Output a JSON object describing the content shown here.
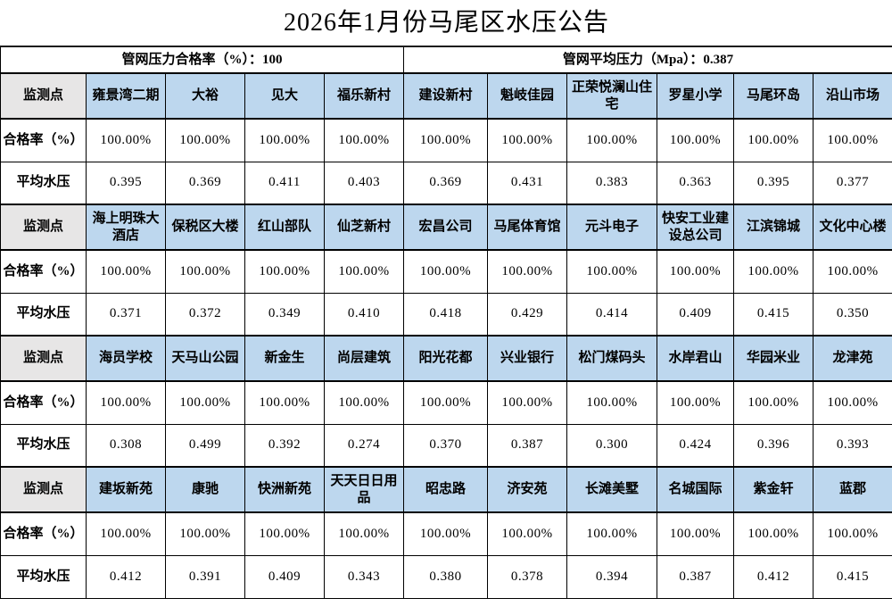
{
  "title": "2026年1月份马尾区水压公告",
  "summary": {
    "pass_rate": "管网压力合格率（%）：100",
    "avg_pressure": "管网平均压力（Mpa）：0.387"
  },
  "row_labels": {
    "point": "监测点",
    "rate": "合格率（%）",
    "pressure": "平均水压"
  },
  "groups": [
    {
      "points": [
        "雍景湾二期",
        "大裕",
        "见大",
        "福乐新村",
        "建设新村",
        "魁岐佳园",
        "正荣悦澜山住宅",
        "罗星小学",
        "马尾环岛",
        "沿山市场"
      ],
      "rates": [
        "100.00%",
        "100.00%",
        "100.00%",
        "100.00%",
        "100.00%",
        "100.00%",
        "100.00%",
        "100.00%",
        "100.00%",
        "100.00%"
      ],
      "pressures": [
        "0.395",
        "0.369",
        "0.411",
        "0.403",
        "0.369",
        "0.431",
        "0.383",
        "0.363",
        "0.395",
        "0.377"
      ]
    },
    {
      "points": [
        "海上明珠大酒店",
        "保税区大楼",
        "红山部队",
        "仙芝新村",
        "宏昌公司",
        "马尾体育馆",
        "元斗电子",
        "快安工业建设总公司",
        "江滨锦城",
        "文化中心楼"
      ],
      "rates": [
        "100.00%",
        "100.00%",
        "100.00%",
        "100.00%",
        "100.00%",
        "100.00%",
        "100.00%",
        "100.00%",
        "100.00%",
        "100.00%"
      ],
      "pressures": [
        "0.371",
        "0.372",
        "0.349",
        "0.410",
        "0.418",
        "0.429",
        "0.414",
        "0.409",
        "0.415",
        "0.350"
      ]
    },
    {
      "points": [
        "海员学校",
        "天马山公园",
        "新金生",
        "尚层建筑",
        "阳光花都",
        "兴业银行",
        "松门煤码头",
        "水岸君山",
        "华园米业",
        "龙津苑"
      ],
      "rates": [
        "100.00%",
        "100.00%",
        "100.00%",
        "100.00%",
        "100.00%",
        "100.00%",
        "100.00%",
        "100.00%",
        "100.00%",
        "100.00%"
      ],
      "pressures": [
        "0.308",
        "0.499",
        "0.392",
        "0.274",
        "0.370",
        "0.387",
        "0.300",
        "0.424",
        "0.396",
        "0.393"
      ]
    },
    {
      "points": [
        "建坂新苑",
        "康驰",
        "快洲新苑",
        "天天日日用品",
        "昭忠路",
        "济安苑",
        "长滩美墅",
        "名城国际",
        "紫金轩",
        "蓝郡"
      ],
      "rates": [
        "100.00%",
        "100.00%",
        "100.00%",
        "100.00%",
        "100.00%",
        "100.00%",
        "100.00%",
        "100.00%",
        "100.00%",
        "100.00%"
      ],
      "pressures": [
        "0.412",
        "0.391",
        "0.409",
        "0.343",
        "0.380",
        "0.378",
        "0.394",
        "0.387",
        "0.412",
        "0.415"
      ]
    }
  ],
  "colors": {
    "point_cell_blue": "#bdd7ee",
    "label_cell_gray": "#e7e6e6",
    "border_black": "#000000"
  }
}
